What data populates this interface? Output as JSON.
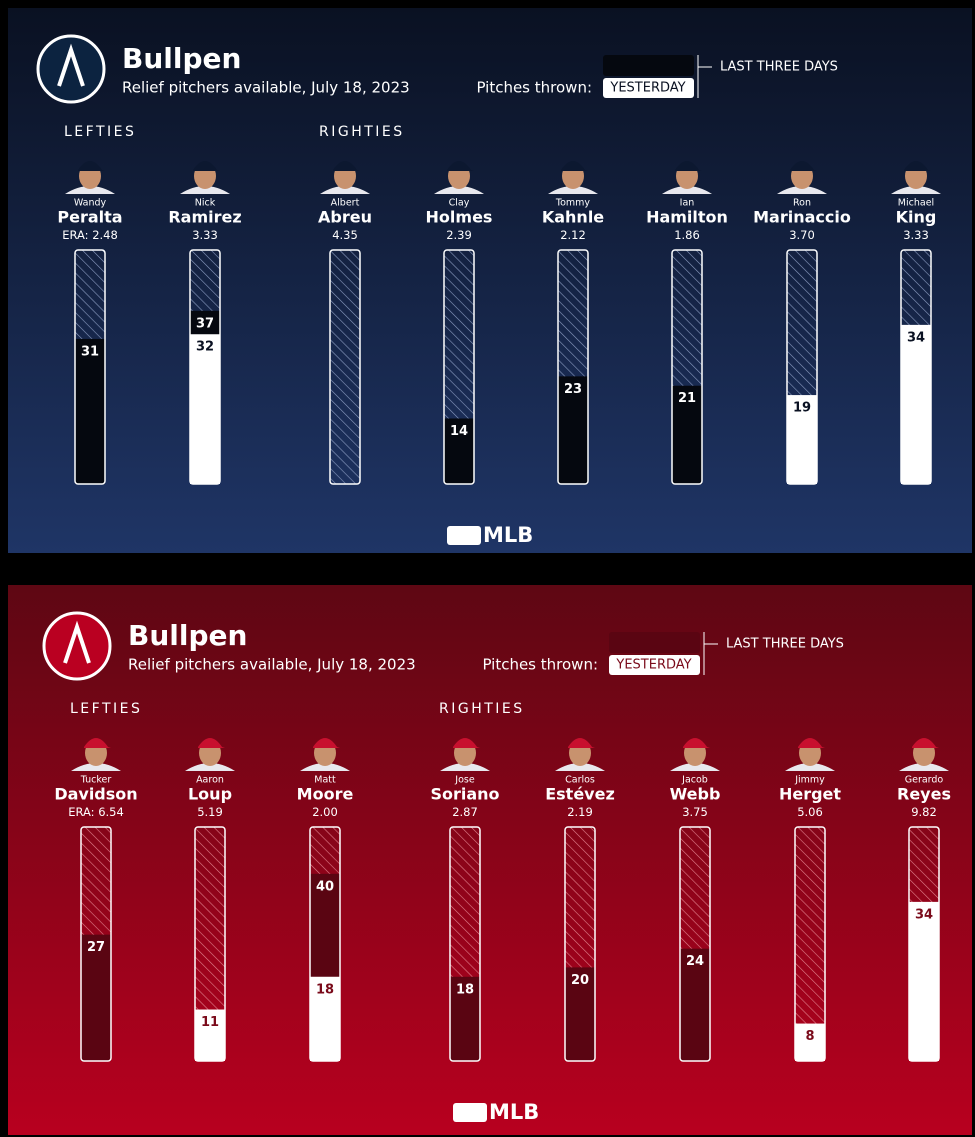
{
  "ylim": [
    0,
    50
  ],
  "panels": [
    {
      "title": "Bullpen",
      "subtitle": "Relief pitchers available, July 18, 2023",
      "legend_title": "Pitches thrown:",
      "legend_three_days": "LAST THREE DAYS",
      "legend_yesterday": "YESTERDAY",
      "era_prefix": "ERA:",
      "footer": "MLB",
      "colors": {
        "bg_top": "#0a1122",
        "bg_bottom": "#1f3566",
        "three_days": "#05080f",
        "yesterday": "#ffffff",
        "hatch": "#8a9bc0",
        "yesterday_text": "#0a1122",
        "logo": "#0c2340"
      },
      "groups": [
        {
          "label": "LEFTIES",
          "pitchers": [
            {
              "first": "Wandy",
              "last": "Peralta",
              "era": "2.48",
              "last_three_days": 31,
              "yesterday": null
            },
            {
              "first": "Nick",
              "last": "Ramirez",
              "era": "3.33",
              "last_three_days": 37,
              "yesterday": 32
            }
          ]
        },
        {
          "label": "RIGHTIES",
          "pitchers": [
            {
              "first": "Albert",
              "last": "Abreu",
              "era": "4.35",
              "last_three_days": null,
              "yesterday": null
            },
            {
              "first": "Clay",
              "last": "Holmes",
              "era": "2.39",
              "last_three_days": 14,
              "yesterday": null
            },
            {
              "first": "Tommy",
              "last": "Kahnle",
              "era": "2.12",
              "last_three_days": 23,
              "yesterday": null
            },
            {
              "first": "Ian",
              "last": "Hamilton",
              "era": "1.86",
              "last_three_days": 21,
              "yesterday": null
            },
            {
              "first": "Ron",
              "last": "Marinaccio",
              "era": "3.70",
              "last_three_days": null,
              "yesterday": 19
            },
            {
              "first": "Michael",
              "last": "King",
              "era": "3.33",
              "last_three_days": null,
              "yesterday": 34
            }
          ]
        }
      ]
    },
    {
      "title": "Bullpen",
      "subtitle": "Relief pitchers available, July 18, 2023",
      "legend_title": "Pitches thrown:",
      "legend_three_days": "LAST THREE DAYS",
      "legend_yesterday": "YESTERDAY",
      "era_prefix": "ERA:",
      "footer": "MLB",
      "colors": {
        "bg_top": "#5e0713",
        "bg_bottom": "#b8001f",
        "three_days": "#5a0512",
        "yesterday": "#ffffff",
        "hatch": "#e0808c",
        "yesterday_text": "#7a0a1a",
        "logo": "#ba0021"
      },
      "groups": [
        {
          "label": "LEFTIES",
          "pitchers": [
            {
              "first": "Tucker",
              "last": "Davidson",
              "era": "6.54",
              "last_three_days": 27,
              "yesterday": null
            },
            {
              "first": "Aaron",
              "last": "Loup",
              "era": "5.19",
              "last_three_days": null,
              "yesterday": 11
            },
            {
              "first": "Matt",
              "last": "Moore",
              "era": "2.00",
              "last_three_days": 40,
              "yesterday": 18
            }
          ]
        },
        {
          "label": "RIGHTIES",
          "pitchers": [
            {
              "first": "Jose",
              "last": "Soriano",
              "era": "2.87",
              "last_three_days": 18,
              "yesterday": null
            },
            {
              "first": "Carlos",
              "last": "Estévez",
              "era": "2.19",
              "last_three_days": 20,
              "yesterday": null
            },
            {
              "first": "Jacob",
              "last": "Webb",
              "era": "3.75",
              "last_three_days": 24,
              "yesterday": null
            },
            {
              "first": "Jimmy",
              "last": "Herget",
              "era": "5.06",
              "last_three_days": null,
              "yesterday": 8
            },
            {
              "first": "Gerardo",
              "last": "Reyes",
              "era": "9.82",
              "last_three_days": null,
              "yesterday": 34
            }
          ]
        }
      ]
    }
  ]
}
